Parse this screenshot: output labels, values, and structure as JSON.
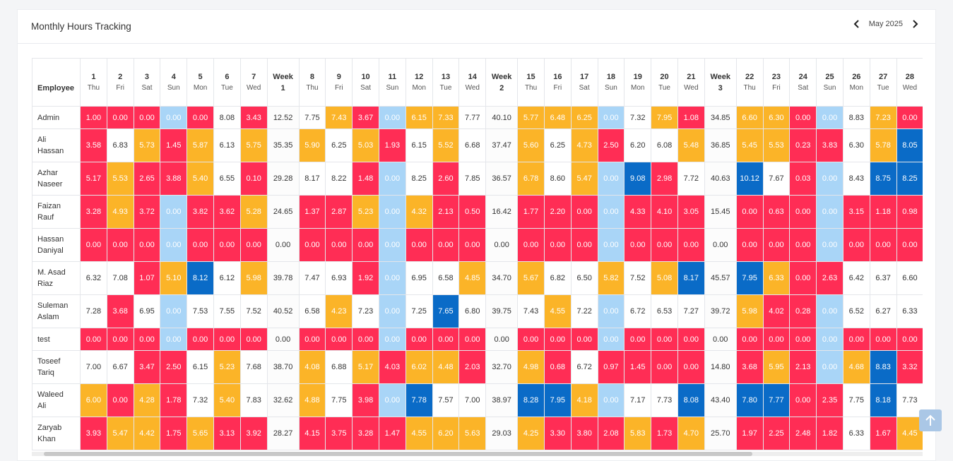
{
  "header": {
    "title": "Monthly Hours Tracking",
    "month": "May 2025"
  },
  "table": {
    "employee_header": "Employee",
    "palette": {
      "R": "#ff2d55",
      "Y": "#fbb428",
      "L": "#a9d5f7",
      "B": "#0a6bc7",
      "W": "#ffffff",
      "G": "#fcfcfc"
    },
    "columns": [
      {
        "label": "1",
        "sub": "Thu"
      },
      {
        "label": "2",
        "sub": "Fri"
      },
      {
        "label": "3",
        "sub": "Sat"
      },
      {
        "label": "4",
        "sub": "Sun"
      },
      {
        "label": "5",
        "sub": "Mon"
      },
      {
        "label": "6",
        "sub": "Tue"
      },
      {
        "label": "7",
        "sub": "Wed"
      },
      {
        "label": "Week",
        "sub": "1"
      },
      {
        "label": "8",
        "sub": "Thu"
      },
      {
        "label": "9",
        "sub": "Fri"
      },
      {
        "label": "10",
        "sub": "Sat"
      },
      {
        "label": "11",
        "sub": "Sun"
      },
      {
        "label": "12",
        "sub": "Mon"
      },
      {
        "label": "13",
        "sub": "Tue"
      },
      {
        "label": "14",
        "sub": "Wed"
      },
      {
        "label": "Week",
        "sub": "2"
      },
      {
        "label": "15",
        "sub": "Thu"
      },
      {
        "label": "16",
        "sub": "Fri"
      },
      {
        "label": "17",
        "sub": "Sat"
      },
      {
        "label": "18",
        "sub": "Sun"
      },
      {
        "label": "19",
        "sub": "Mon"
      },
      {
        "label": "20",
        "sub": "Tue"
      },
      {
        "label": "21",
        "sub": "Wed"
      },
      {
        "label": "Week",
        "sub": "3"
      },
      {
        "label": "22",
        "sub": "Thu"
      },
      {
        "label": "23",
        "sub": "Fri"
      },
      {
        "label": "24",
        "sub": "Sat"
      },
      {
        "label": "25",
        "sub": "Sun"
      },
      {
        "label": "26",
        "sub": "Mon"
      },
      {
        "label": "27",
        "sub": "Tue"
      },
      {
        "label": "28",
        "sub": "Wed"
      }
    ],
    "rows": [
      {
        "name": "Admin",
        "colors": "RRRLRWRGWYRLYYWGYYYLWYRGYYRLWYR",
        "cells": [
          "1.00",
          "0.00",
          "0.00",
          "0.00",
          "0.00",
          "8.08",
          "3.43",
          "12.52",
          "7.75",
          "7.43",
          "3.67",
          "0.00",
          "6.15",
          "7.33",
          "7.77",
          "40.10",
          "5.77",
          "6.48",
          "6.25",
          "0.00",
          "7.32",
          "7.95",
          "1.08",
          "34.85",
          "6.60",
          "6.30",
          "0.00",
          "0.00",
          "8.83",
          "7.23",
          "0.00"
        ]
      },
      {
        "name": "Ali Hassan",
        "colors": "RWYRYWYGYWYRWYWGYWYRWWYGYYRRWYB",
        "cells": [
          "3.58",
          "6.83",
          "5.73",
          "1.45",
          "5.87",
          "6.13",
          "5.75",
          "35.35",
          "5.90",
          "6.25",
          "5.03",
          "1.93",
          "6.15",
          "5.52",
          "6.68",
          "37.47",
          "5.60",
          "6.25",
          "4.73",
          "2.50",
          "6.20",
          "6.08",
          "5.48",
          "36.85",
          "5.45",
          "5.53",
          "0.23",
          "3.83",
          "6.30",
          "5.78",
          "8.05"
        ]
      },
      {
        "name": "Azhar Naseer",
        "colors": "RYRRYWRGWWRLWRWGYWYLBRWGBWRLWBB",
        "cells": [
          "5.17",
          "5.53",
          "2.65",
          "3.88",
          "5.40",
          "6.55",
          "0.10",
          "29.28",
          "8.17",
          "8.22",
          "1.48",
          "0.00",
          "8.25",
          "2.60",
          "7.85",
          "36.57",
          "6.78",
          "8.60",
          "5.47",
          "0.00",
          "9.08",
          "2.98",
          "7.72",
          "40.63",
          "10.12",
          "7.67",
          "0.03",
          "0.00",
          "8.43",
          "8.75",
          "8.25"
        ]
      },
      {
        "name": "Faizan Rauf",
        "colors": "RYRLRRYGRRYLYRRGRRRLRRRGRRRLRRR",
        "cells": [
          "3.28",
          "4.93",
          "3.72",
          "0.00",
          "3.82",
          "3.62",
          "5.28",
          "24.65",
          "1.37",
          "2.87",
          "5.23",
          "0.00",
          "4.32",
          "2.13",
          "0.50",
          "16.42",
          "1.77",
          "2.20",
          "0.00",
          "0.00",
          "4.33",
          "4.10",
          "3.05",
          "15.45",
          "0.00",
          "0.63",
          "0.00",
          "0.00",
          "3.15",
          "1.18",
          "0.98"
        ]
      },
      {
        "name": "Hassan Daniyal",
        "colors": "RRRLRRRGRRRLRRRGRRRLRRRGRRRLRRR",
        "cells": [
          "0.00",
          "0.00",
          "0.00",
          "0.00",
          "0.00",
          "0.00",
          "0.00",
          "0.00",
          "0.00",
          "0.00",
          "0.00",
          "0.00",
          "0.00",
          "0.00",
          "0.00",
          "0.00",
          "0.00",
          "0.00",
          "0.00",
          "0.00",
          "0.00",
          "0.00",
          "0.00",
          "0.00",
          "0.00",
          "0.00",
          "0.00",
          "0.00",
          "0.00",
          "0.00",
          "0.00"
        ]
      },
      {
        "name": "M. Asad Riaz",
        "colors": "WWRYBWYGWWRLWWYGYWWYWYBGBYRRWWW",
        "cells": [
          "6.32",
          "7.08",
          "1.07",
          "5.10",
          "8.12",
          "6.12",
          "5.98",
          "39.78",
          "7.47",
          "6.93",
          "1.92",
          "0.00",
          "6.95",
          "6.58",
          "4.85",
          "34.70",
          "5.67",
          "6.82",
          "6.50",
          "5.82",
          "7.52",
          "5.08",
          "8.17",
          "45.57",
          "7.95",
          "6.33",
          "0.00",
          "2.63",
          "6.42",
          "6.37",
          "6.60"
        ]
      },
      {
        "name": "Suleman Aslam",
        "colors": "WRWLWWWGWYWLWBWGWYWLWWWGYRRLWWW",
        "cells": [
          "7.28",
          "3.68",
          "6.95",
          "0.00",
          "7.53",
          "7.55",
          "7.52",
          "40.52",
          "6.58",
          "4.23",
          "7.23",
          "0.00",
          "7.25",
          "7.65",
          "6.80",
          "39.75",
          "7.43",
          "4.55",
          "7.22",
          "0.00",
          "6.72",
          "6.53",
          "7.27",
          "39.72",
          "5.98",
          "4.02",
          "0.28",
          "0.00",
          "6.52",
          "6.27",
          "6.33"
        ]
      },
      {
        "name": "test",
        "colors": "RRRLRRRGRRRLRRRGRRRLRRRGRRRLRRR",
        "cells": [
          "0.00",
          "0.00",
          "0.00",
          "0.00",
          "0.00",
          "0.00",
          "0.00",
          "0.00",
          "0.00",
          "0.00",
          "0.00",
          "0.00",
          "0.00",
          "0.00",
          "0.00",
          "0.00",
          "0.00",
          "0.00",
          "0.00",
          "0.00",
          "0.00",
          "0.00",
          "0.00",
          "0.00",
          "0.00",
          "0.00",
          "0.00",
          "0.00",
          "0.00",
          "0.00",
          "0.00"
        ]
      },
      {
        "name": "Toseef Tariq",
        "colors": "WWRRWYWGYWYRYYRGYRWRRRRGRYRLYBR",
        "cells": [
          "7.00",
          "6.67",
          "3.47",
          "2.50",
          "6.15",
          "5.23",
          "7.68",
          "38.70",
          "4.08",
          "6.88",
          "5.17",
          "4.03",
          "6.02",
          "4.48",
          "2.03",
          "32.70",
          "4.98",
          "0.68",
          "6.72",
          "0.97",
          "1.45",
          "0.00",
          "0.00",
          "14.80",
          "3.68",
          "5.95",
          "2.13",
          "0.00",
          "4.68",
          "8.83",
          "3.32"
        ]
      },
      {
        "name": "Waleed Ali",
        "colors": "YRYRWYWGYWRLBWWGBBYLWWBGBBRRWBW",
        "cells": [
          "6.00",
          "0.00",
          "4.28",
          "1.78",
          "7.32",
          "5.40",
          "7.83",
          "32.62",
          "4.88",
          "7.75",
          "3.98",
          "0.00",
          "7.78",
          "7.57",
          "7.00",
          "38.97",
          "8.28",
          "7.95",
          "4.18",
          "0.00",
          "7.17",
          "7.73",
          "8.08",
          "43.40",
          "7.80",
          "7.77",
          "0.00",
          "2.35",
          "7.75",
          "8.18",
          "7.73"
        ]
      },
      {
        "name": "Zaryab Khan",
        "colors": "RYYRYRRGRRRRYYYGYRRRYRYGRRRRWRY",
        "cells": [
          "3.93",
          "5.47",
          "4.42",
          "1.75",
          "5.65",
          "3.13",
          "3.92",
          "28.27",
          "4.15",
          "3.75",
          "3.28",
          "1.47",
          "4.55",
          "6.20",
          "5.63",
          "29.03",
          "4.25",
          "3.30",
          "3.80",
          "2.08",
          "5.83",
          "1.73",
          "4.70",
          "25.70",
          "1.97",
          "2.25",
          "2.48",
          "1.82",
          "6.33",
          "1.67",
          "4.45"
        ]
      }
    ]
  }
}
